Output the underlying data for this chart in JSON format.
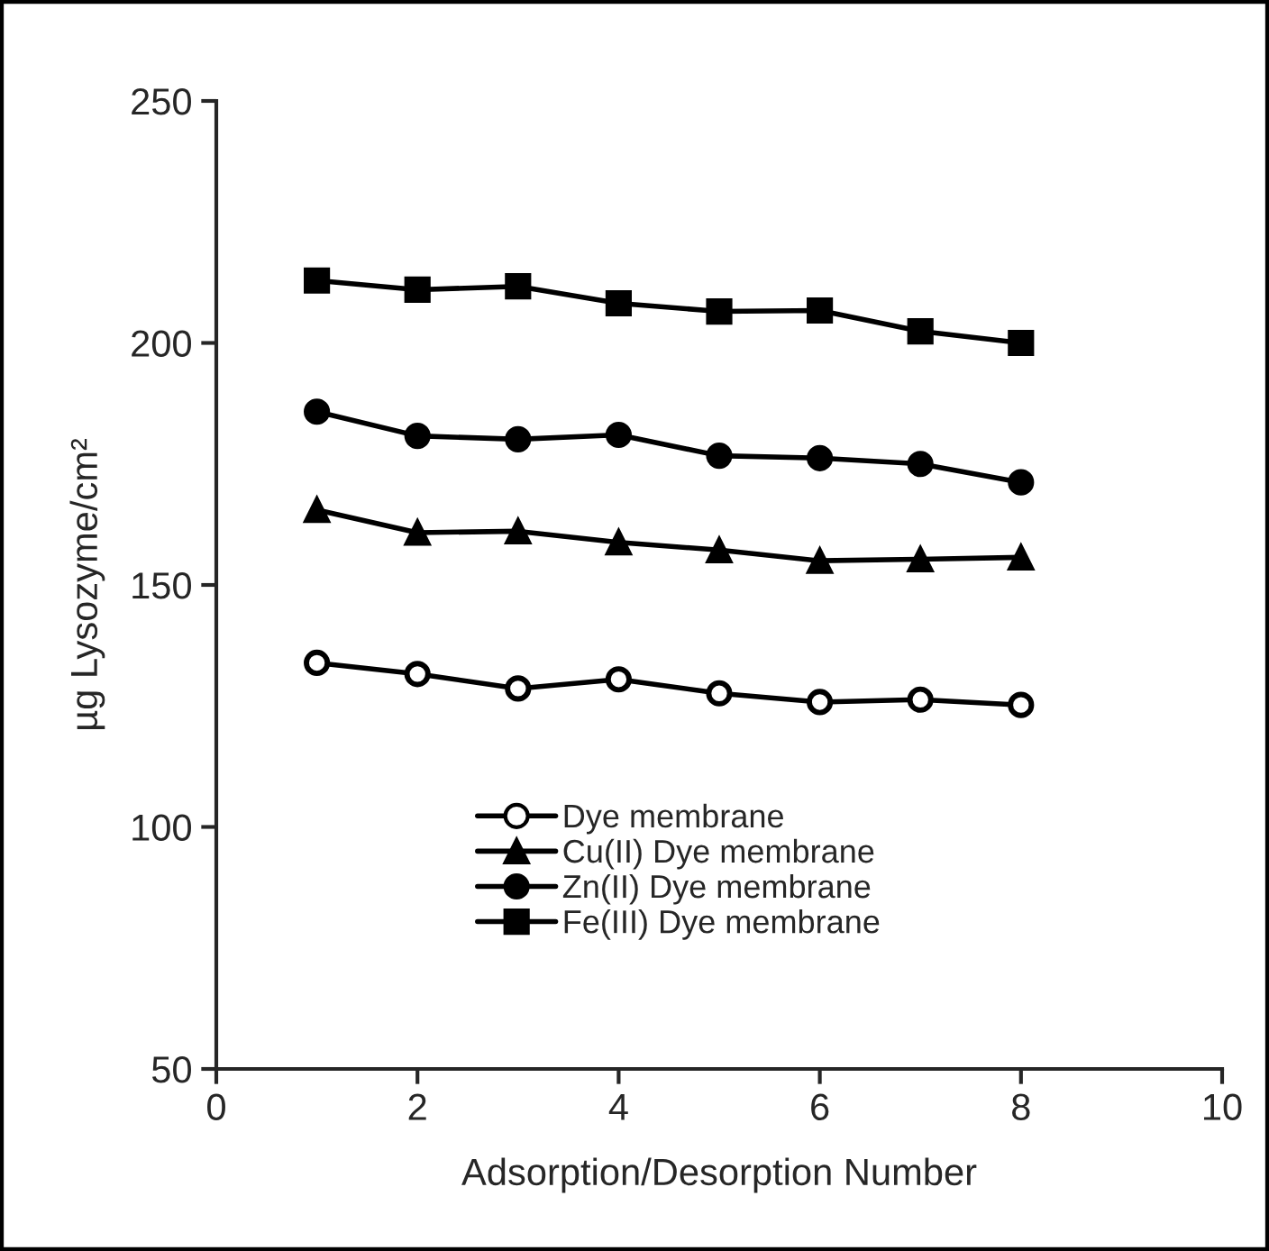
{
  "chart_data": {
    "type": "line",
    "xlabel": "Adsorption/Desorption Number",
    "ylabel": "µg Lysozyme/cm²",
    "x": [
      1,
      2,
      3,
      4,
      5,
      6,
      7,
      8
    ],
    "series": [
      {
        "name": "Dye membrane",
        "color": "#000000",
        "marker": "circle",
        "colors": [
          "#ffffff",
          "#ffffff",
          "#ffffff",
          "#ffffff",
          "#ffffff",
          "#ffffff",
          "#ffffff",
          "#ffffff"
        ],
        "values": [
          133.9,
          131.6,
          128.6,
          130.5,
          127.6,
          125.8,
          126.3,
          125.2
        ]
      },
      {
        "name": "Cu(II) Dye membrane",
        "color": "#000000",
        "marker": "triangle",
        "values": [
          165.5,
          160.8,
          161.1,
          158.8,
          157.2,
          155.0,
          155.3,
          155.7
        ]
      },
      {
        "name": "Zn(II) Dye membrane",
        "color": "#000000",
        "marker": "circle",
        "values": [
          185.8,
          180.8,
          180.1,
          181.0,
          176.7,
          176.2,
          175.0,
          171.2
        ]
      },
      {
        "name": "Fe(III) Dye membrane",
        "color": "#000000",
        "marker": "square",
        "values": [
          212.9,
          211.0,
          211.7,
          208.2,
          206.5,
          206.7,
          202.4,
          200.0
        ]
      }
    ],
    "xlim": [
      0,
      10
    ],
    "xticks": [
      0,
      2,
      4,
      6,
      8,
      10
    ],
    "ylim": [
      50,
      250
    ],
    "yticks": [
      50,
      100,
      150,
      200,
      250
    ],
    "grid": false,
    "legend": "bottom",
    "line_style": "solid"
  }
}
